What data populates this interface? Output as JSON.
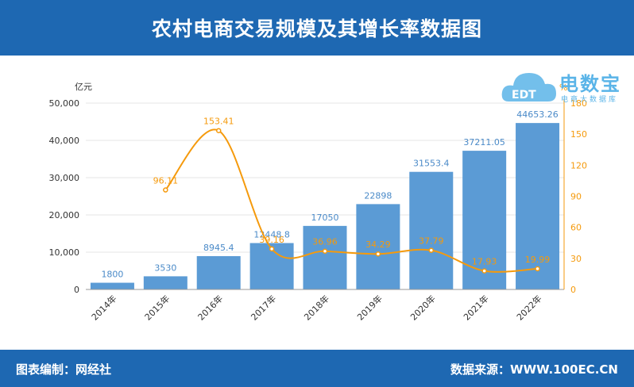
{
  "header": {
    "title": "农村电商交易规模及其增长率数据图"
  },
  "footer": {
    "compiler": "图表编制：网经社",
    "source": "数据来源：WWW.100EC.CN"
  },
  "logo": {
    "name": "电数宝",
    "subtitle": "电商大数据库",
    "mark": "EDT"
  },
  "chart_data": {
    "type": "bar",
    "categories": [
      "2014年",
      "2015年",
      "2016年",
      "2017年",
      "2018年",
      "2019年",
      "2020年",
      "2021年",
      "2022年"
    ],
    "series": [
      {
        "values": [
          1800,
          3530,
          8945.4,
          12448.8,
          17050,
          22898,
          31553.4,
          37211.05,
          44653.26
        ],
        "type": "bar",
        "axis": "left",
        "color": "#5b9bd5",
        "labels": [
          "1800",
          "3530",
          "8945.4",
          "12448.8",
          "17050",
          "22898",
          "31553.4",
          "37211.05",
          "44653.26"
        ]
      },
      {
        "values": [
          null,
          96.11,
          153.41,
          39.16,
          36.96,
          34.29,
          37.79,
          17.93,
          19.99
        ],
        "type": "line",
        "axis": "right",
        "color": "#f59a0c",
        "labels": [
          "",
          "96.11",
          "153.41",
          "39.16",
          "36.96",
          "34.29",
          "37.79",
          "17.93",
          "19.99"
        ]
      }
    ],
    "y_left": {
      "unit": "亿元",
      "ylim": [
        0,
        50000
      ],
      "ticks": [
        "0",
        "10,000",
        "20,000",
        "30,000",
        "40,000",
        "50,000"
      ],
      "tick_values": [
        0,
        10000,
        20000,
        30000,
        40000,
        50000
      ]
    },
    "y_right": {
      "unit": "%",
      "ylim": [
        0,
        180
      ],
      "ticks": [
        "0",
        "30",
        "60",
        "90",
        "120",
        "150",
        "180"
      ],
      "tick_values": [
        0,
        30,
        60,
        90,
        120,
        150,
        180
      ]
    },
    "grid": true,
    "colors": {
      "bar": "#5b9bd5",
      "line": "#f59a0c",
      "bar_label": "#4a8ac8",
      "line_label": "#f59a0c",
      "axis_right": "#f59a0c"
    }
  }
}
